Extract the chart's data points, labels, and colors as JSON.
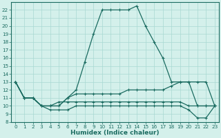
{
  "title": "",
  "xlabel": "Humidex (Indice chaleur)",
  "bg_color": "#d4f0eb",
  "grid_color": "#a8d8d2",
  "line_color": "#1a6b60",
  "xlim": [
    -0.5,
    23.5
  ],
  "ylim": [
    8,
    23
  ],
  "xticks": [
    0,
    1,
    2,
    3,
    4,
    5,
    6,
    7,
    8,
    9,
    10,
    11,
    12,
    13,
    14,
    15,
    16,
    17,
    18,
    19,
    20,
    21,
    22,
    23
  ],
  "yticks": [
    8,
    9,
    10,
    11,
    12,
    13,
    14,
    15,
    16,
    17,
    18,
    19,
    20,
    21,
    22
  ],
  "series": [
    [
      13,
      11,
      11,
      10,
      10,
      10,
      11,
      12,
      15.5,
      19,
      22,
      22,
      22,
      22,
      22.5,
      20,
      18,
      16,
      13,
      13,
      13,
      13,
      13,
      10
    ],
    [
      13,
      11,
      11,
      10,
      10,
      10,
      11,
      11.5,
      11.5,
      11.5,
      11.5,
      11.5,
      11.5,
      12,
      12,
      12,
      12,
      12,
      12.5,
      13,
      13,
      10,
      10,
      10
    ],
    [
      13,
      11,
      11,
      10,
      10,
      10.5,
      10.5,
      10.5,
      10.5,
      10.5,
      10.5,
      10.5,
      10.5,
      10.5,
      10.5,
      10.5,
      10.5,
      10.5,
      10.5,
      10.5,
      10,
      10,
      10,
      10
    ],
    [
      13,
      11,
      11,
      10,
      9.5,
      9.5,
      9.5,
      10,
      10,
      10,
      10,
      10,
      10,
      10,
      10,
      10,
      10,
      10,
      10,
      10,
      9.5,
      8.5,
      8.5,
      10
    ]
  ],
  "marker": "+",
  "linewidth": 0.9,
  "markersize": 3.0,
  "xlabel_fontsize": 6.5,
  "tick_fontsize": 5.2
}
